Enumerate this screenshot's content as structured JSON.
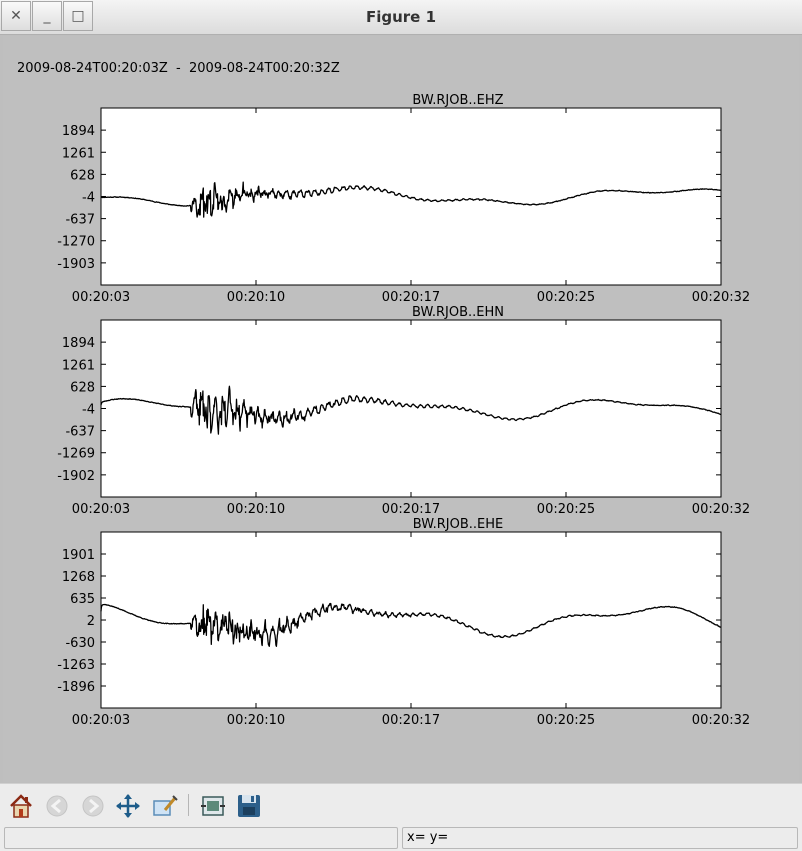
{
  "window": {
    "title": "Figure 1",
    "close_glyph": "✕",
    "minimize_glyph": "_",
    "maximize_glyph": "□"
  },
  "figure": {
    "supertitle": "2009-08-24T00:20:03Z  -  2009-08-24T00:20:32Z",
    "background_color": "#bfbfbf"
  },
  "chart_data": [
    {
      "type": "line",
      "title": "BW.RJOB..EHZ",
      "xlabel": "",
      "ylabel": "",
      "xticks": [
        "00:20:03",
        "00:20:10",
        "00:20:17",
        "00:20:25",
        "00:20:32"
      ],
      "yticks": [
        1894,
        1261,
        628,
        -4,
        -637,
        -1270,
        -1903
      ],
      "ylim": [
        -2536,
        2527
      ],
      "x_range_s": [
        0,
        29
      ],
      "trace_color": "#000000",
      "waveform": {
        "seed": 11,
        "lf_amp": 190,
        "lf_periods": 1.9,
        "lf_phase": 3.3,
        "burst_start_s": 4.2,
        "burst_amp": 1250,
        "burst_decay": 2.2,
        "coda_amp": 260,
        "coda_decay": 5.0
      }
    },
    {
      "type": "line",
      "title": "BW.RJOB..EHN",
      "xlabel": "",
      "ylabel": "",
      "xticks": [
        "00:20:03",
        "00:20:10",
        "00:20:17",
        "00:20:25",
        "00:20:32"
      ],
      "yticks": [
        1894,
        1261,
        628,
        -4,
        -637,
        -1269,
        -1902
      ],
      "ylim": [
        -2535,
        2527
      ],
      "x_range_s": [
        0,
        29
      ],
      "trace_color": "#000000",
      "waveform": {
        "seed": 23,
        "lf_amp": 230,
        "lf_periods": 2.6,
        "lf_phase": 0.4,
        "burst_start_s": 4.2,
        "burst_amp": 1550,
        "burst_decay": 2.6,
        "coda_amp": 340,
        "coda_decay": 5.5
      }
    },
    {
      "type": "line",
      "title": "BW.RJOB..EHE",
      "xlabel": "",
      "ylabel": "",
      "xticks": [
        "00:20:03",
        "00:20:10",
        "00:20:17",
        "00:20:25",
        "00:20:32"
      ],
      "yticks": [
        1901,
        1268,
        635,
        2,
        -630,
        -1263,
        -1896
      ],
      "ylim": [
        -2529,
        2534
      ],
      "x_range_s": [
        0,
        29
      ],
      "trace_color": "#000000",
      "waveform": {
        "seed": 37,
        "lf_amp": 330,
        "lf_periods": 2.3,
        "lf_phase": 1.6,
        "burst_start_s": 4.2,
        "burst_amp": 1450,
        "burst_decay": 3.2,
        "coda_amp": 260,
        "coda_decay": 6.0
      }
    }
  ],
  "toolbar": {
    "icons": [
      "home-icon",
      "back-arrow-icon",
      "forward-arrow-icon",
      "pan-icon",
      "zoom-rect-icon",
      "subplots-icon",
      "save-icon"
    ]
  },
  "statusbar": {
    "message": "",
    "coords": "x= y="
  }
}
